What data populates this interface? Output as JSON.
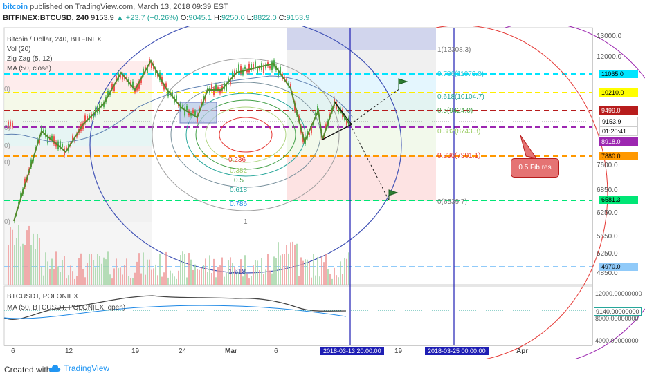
{
  "header": {
    "user": "bitcoin",
    "published": "published on TradingView.com, March 13, 2018 09:39 EST",
    "symbol": "BITFINEX:BTCUSD, 240",
    "last": "9153.9",
    "change": "▲ +23.7 (+0.26%)",
    "o_label": "O:",
    "o": "9045.1",
    "h_label": "H:",
    "h": "9250.0",
    "l_label": "L:",
    "l": "8822.0",
    "c_label": "C:",
    "c": "9153.9"
  },
  "legends": {
    "main_title": "Bitcoin / Dollar, 240, BITFINEX",
    "vol": "Vol (20)",
    "zigzag": "Zig Zag (5, 12)",
    "ma": "MA (50, close)",
    "sub_title": "BTCUSDT, POLONIEX",
    "sub_ma": "MA (50, BTCUSDT, POLONIEX, open)"
  },
  "fib_levels": [
    {
      "label": "1(12308.3)",
      "color": "#888888"
    },
    {
      "label": "0.786(11073.8)",
      "color": "#4dd0e1"
    },
    {
      "label": "0.618(10104.7)",
      "color": "#4db6ac"
    },
    {
      "label": "0.5(9424.0)",
      "color": "#81c784"
    },
    {
      "label": "0.382(8743.3)",
      "color": "#aed581"
    },
    {
      "label": "0.236(7901.1)",
      "color": "#e53935"
    },
    {
      "label": "0(6539.7)",
      "color": "#888888"
    }
  ],
  "circle_labels": [
    {
      "label": "0.236",
      "color": "#e53935"
    },
    {
      "label": "0.382",
      "color": "#aed581"
    },
    {
      "label": "0.5",
      "color": "#43a047"
    },
    {
      "label": "0.618",
      "color": "#26a69a"
    },
    {
      "label": "0.786",
      "color": "#1e88e5"
    },
    {
      "label": "1",
      "color": "#777777"
    },
    {
      "label": "1.618",
      "color": "#3949ab"
    }
  ],
  "axis_labels": [
    "13000.0",
    "12000.0",
    "7600.0",
    "6850.0",
    "6250.0",
    "5650.0",
    "5250.0",
    "4850.0"
  ],
  "price_tags": [
    {
      "label": "11065.0",
      "bg": "#00e5ff"
    },
    {
      "label": "10210.0",
      "bg": "#ffff00"
    },
    {
      "label": "9499.0",
      "bg": "#b71c1c",
      "fg": "#ffffff"
    },
    {
      "label": "9153.9",
      "bg": "#ffffff"
    },
    {
      "label": "01:20:41",
      "bg": "#ffffff"
    },
    {
      "label": "8918.0",
      "bg": "#9c27b0",
      "fg": "#ffffff"
    },
    {
      "label": "7880.0",
      "bg": "#ff9800"
    },
    {
      "label": "6581.3",
      "bg": "#00e676"
    },
    {
      "label": "4970.0",
      "bg": "#90caf9"
    }
  ],
  "sub_axis": [
    "12000.00000000",
    "9140.00000000",
    "8000.00000000",
    "4000.00000000"
  ],
  "time_labels": [
    "6",
    "12",
    "19",
    "24",
    "Mar",
    "6",
    "19",
    "Apr"
  ],
  "date_boxes": [
    "2018-03-13 20:00:00",
    "2018-03-25 00:00:00"
  ],
  "annotation": "0.5 Fib res",
  "left_stub_labels": [
    "0)",
    "0)",
    "0)",
    "0)",
    "0)"
  ],
  "footer": {
    "created": "Created with",
    "brand": "TradingView"
  }
}
